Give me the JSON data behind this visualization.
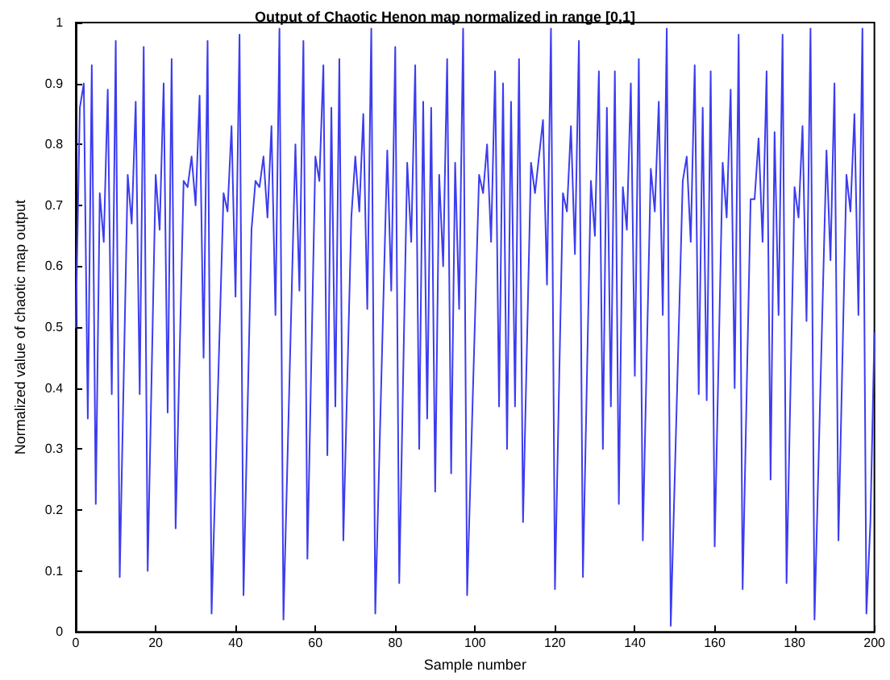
{
  "chart_data": {
    "type": "line",
    "title": "Output of Chaotic Henon map normalized in range [0,1]",
    "xlabel": "Sample number",
    "ylabel": "Normalized value of chaotic map output",
    "x": [
      0,
      1,
      2,
      3,
      4,
      5,
      6,
      7,
      8,
      9,
      10,
      11,
      13,
      14,
      15,
      16,
      17,
      18,
      20,
      21,
      22,
      23,
      24,
      25,
      27,
      28,
      29,
      30,
      31,
      32,
      33,
      34,
      37,
      38,
      39,
      40,
      41,
      42,
      44,
      45,
      46,
      47,
      48,
      49,
      50,
      51,
      52,
      55,
      56,
      57,
      58,
      60,
      61,
      62,
      63,
      64,
      65,
      66,
      67,
      69,
      70,
      71,
      72,
      73,
      74,
      75,
      78,
      79,
      80,
      81,
      83,
      84,
      85,
      86,
      87,
      88,
      89,
      90,
      91,
      92,
      93,
      94,
      95,
      96,
      97,
      98,
      101,
      102,
      103,
      104,
      105,
      106,
      107,
      108,
      109,
      110,
      111,
      112,
      114,
      115,
      116,
      117,
      118,
      119,
      120,
      122,
      123,
      124,
      125,
      126,
      127,
      129,
      130,
      131,
      132,
      133,
      134,
      135,
      136,
      137,
      138,
      139,
      140,
      141,
      142,
      144,
      145,
      146,
      147,
      148,
      149,
      152,
      153,
      154,
      155,
      156,
      157,
      158,
      159,
      160,
      162,
      163,
      164,
      165,
      166,
      167,
      169,
      170,
      171,
      172,
      173,
      174,
      175,
      176,
      177,
      178,
      180,
      181,
      182,
      183,
      184,
      185,
      188,
      189,
      190,
      191,
      193,
      194,
      195,
      196,
      197,
      198,
      199,
      200
    ],
    "values": [
      0.5,
      0.86,
      0.9,
      0.35,
      0.93,
      0.21,
      0.72,
      0.64,
      0.89,
      0.39,
      0.97,
      0.09,
      0.75,
      0.67,
      0.87,
      0.39,
      0.96,
      0.1,
      0.75,
      0.66,
      0.9,
      0.36,
      0.94,
      0.17,
      0.74,
      0.73,
      0.78,
      0.7,
      0.88,
      0.45,
      0.97,
      0.03,
      0.72,
      0.69,
      0.83,
      0.55,
      0.98,
      0.06,
      0.66,
      0.74,
      0.73,
      0.78,
      0.68,
      0.83,
      0.52,
      0.99,
      0.02,
      0.8,
      0.56,
      0.97,
      0.12,
      0.78,
      0.74,
      0.93,
      0.29,
      0.86,
      0.37,
      0.94,
      0.15,
      0.68,
      0.78,
      0.69,
      0.85,
      0.53,
      0.99,
      0.03,
      0.79,
      0.56,
      0.96,
      0.08,
      0.77,
      0.64,
      0.93,
      0.3,
      0.87,
      0.35,
      0.86,
      0.23,
      0.75,
      0.6,
      0.94,
      0.26,
      0.77,
      0.53,
      0.99,
      0.06,
      0.75,
      0.72,
      0.8,
      0.64,
      0.92,
      0.37,
      0.9,
      0.3,
      0.87,
      0.37,
      0.94,
      0.18,
      0.77,
      0.72,
      0.78,
      0.84,
      0.57,
      0.99,
      0.07,
      0.72,
      0.69,
      0.83,
      0.62,
      0.97,
      0.09,
      0.74,
      0.65,
      0.92,
      0.3,
      0.86,
      0.37,
      0.92,
      0.21,
      0.73,
      0.66,
      0.9,
      0.42,
      0.94,
      0.15,
      0.76,
      0.69,
      0.87,
      0.52,
      0.99,
      0.01,
      0.74,
      0.78,
      0.64,
      0.93,
      0.39,
      0.86,
      0.38,
      0.92,
      0.14,
      0.77,
      0.68,
      0.89,
      0.4,
      0.98,
      0.07,
      0.71,
      0.71,
      0.81,
      0.64,
      0.92,
      0.25,
      0.82,
      0.52,
      0.98,
      0.08,
      0.73,
      0.68,
      0.83,
      0.51,
      0.99,
      0.02,
      0.79,
      0.61,
      0.9,
      0.15,
      0.75,
      0.69,
      0.85,
      0.52,
      0.99,
      0.03,
      0.18,
      0.49
    ],
    "color": "#3c3cf0",
    "marker": "none",
    "xlim": [
      0,
      200
    ],
    "xticks": [
      0,
      20,
      40,
      60,
      80,
      100,
      120,
      140,
      160,
      180,
      200
    ],
    "ylim": [
      0,
      1
    ],
    "yticks": [
      0,
      0.1,
      0.2,
      0.3,
      0.4,
      0.5,
      0.6,
      0.7,
      0.8,
      0.9,
      1
    ]
  }
}
